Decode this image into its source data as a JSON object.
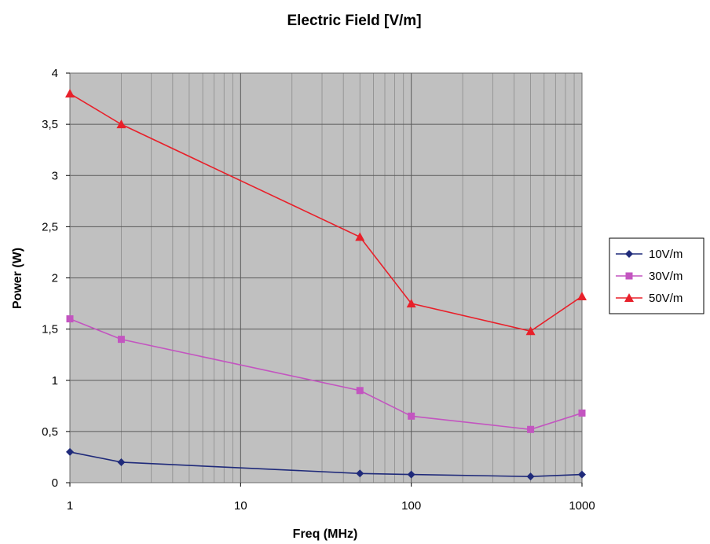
{
  "chart_data": {
    "type": "line",
    "title": "Electric Field [V/m]",
    "xlabel": "Freq (MHz)",
    "ylabel": "Power (W)",
    "x_scale": "log",
    "xlim": [
      1,
      1000
    ],
    "ylim": [
      0,
      4
    ],
    "x_ticks": [
      1,
      10,
      100,
      1000
    ],
    "x_tick_labels": [
      "1",
      "10",
      "100",
      "1000"
    ],
    "y_ticks": [
      0,
      0.5,
      1,
      1.5,
      2,
      2.5,
      3,
      3.5,
      4
    ],
    "y_tick_labels": [
      "0",
      "0,5",
      "1",
      "1,5",
      "2",
      "2,5",
      "3",
      "3,5",
      "4"
    ],
    "grid": true,
    "plot_background": "#c0c0c0",
    "legend_position": "right",
    "x": [
      1,
      2,
      50,
      100,
      500,
      1000
    ],
    "series": [
      {
        "name": "10V/m",
        "values": [
          0.3,
          0.2,
          0.09,
          0.08,
          0.06,
          0.08
        ],
        "color": "#1f2a7a",
        "marker": "diamond"
      },
      {
        "name": "30V/m",
        "values": [
          1.6,
          1.4,
          0.9,
          0.65,
          0.52,
          0.68
        ],
        "color": "#c355c0",
        "marker": "square"
      },
      {
        "name": "50V/m",
        "values": [
          3.8,
          3.5,
          2.4,
          1.75,
          1.48,
          1.82
        ],
        "color": "#e8202a",
        "marker": "triangle"
      }
    ]
  }
}
